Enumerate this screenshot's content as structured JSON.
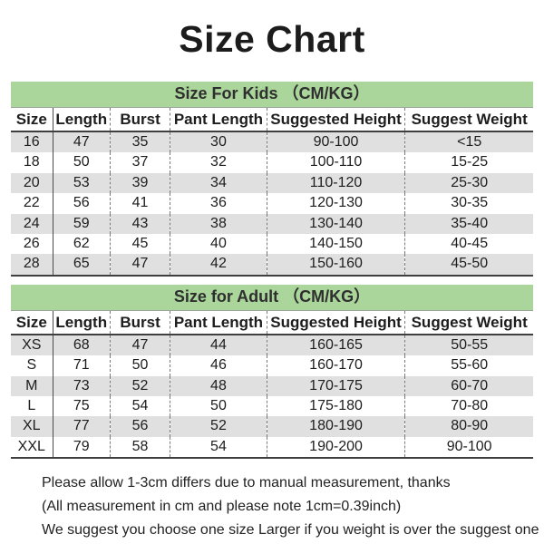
{
  "title": "Size Chart",
  "chart_data": [
    {
      "type": "table",
      "title": "Size For Kids （CM/KG）",
      "columns": [
        "Size",
        "Length",
        "Burst",
        "Pant Length",
        "Suggested Height",
        "Suggest Weight"
      ],
      "rows": [
        [
          "16",
          "47",
          "35",
          "30",
          "90-100",
          "<15"
        ],
        [
          "18",
          "50",
          "37",
          "32",
          "100-110",
          "15-25"
        ],
        [
          "20",
          "53",
          "39",
          "34",
          "110-120",
          "25-30"
        ],
        [
          "22",
          "56",
          "41",
          "36",
          "120-130",
          "30-35"
        ],
        [
          "24",
          "59",
          "43",
          "38",
          "130-140",
          "35-40"
        ],
        [
          "26",
          "62",
          "45",
          "40",
          "140-150",
          "40-45"
        ],
        [
          "28",
          "65",
          "47",
          "42",
          "150-160",
          "45-50"
        ]
      ]
    },
    {
      "type": "table",
      "title": "Size for Adult （CM/KG）",
      "columns": [
        "Size",
        "Length",
        "Burst",
        "Pant Length",
        "Suggested Height",
        "Suggest Weight"
      ],
      "rows": [
        [
          "XS",
          "68",
          "47",
          "44",
          "160-165",
          "50-55"
        ],
        [
          "S",
          "71",
          "50",
          "46",
          "160-170",
          "55-60"
        ],
        [
          "M",
          "73",
          "52",
          "48",
          "170-175",
          "60-70"
        ],
        [
          "L",
          "75",
          "54",
          "50",
          "175-180",
          "70-80"
        ],
        [
          "XL",
          "77",
          "56",
          "52",
          "180-190",
          "80-90"
        ],
        [
          "XXL",
          "79",
          "58",
          "54",
          "190-200",
          "90-100"
        ]
      ]
    }
  ],
  "footer": {
    "lines": [
      "Please allow 1-3cm differs due to manual measurement, thanks",
      "(All measurement in cm and please note 1cm=0.39inch)",
      "We suggest you choose one size Larger if you weight is over the suggest one"
    ]
  },
  "colors": {
    "band_green": "#aad59b",
    "stripe_gray": "#e0e0e0",
    "border_dark": "#3f3f3f",
    "text": "#1d1d1d"
  }
}
